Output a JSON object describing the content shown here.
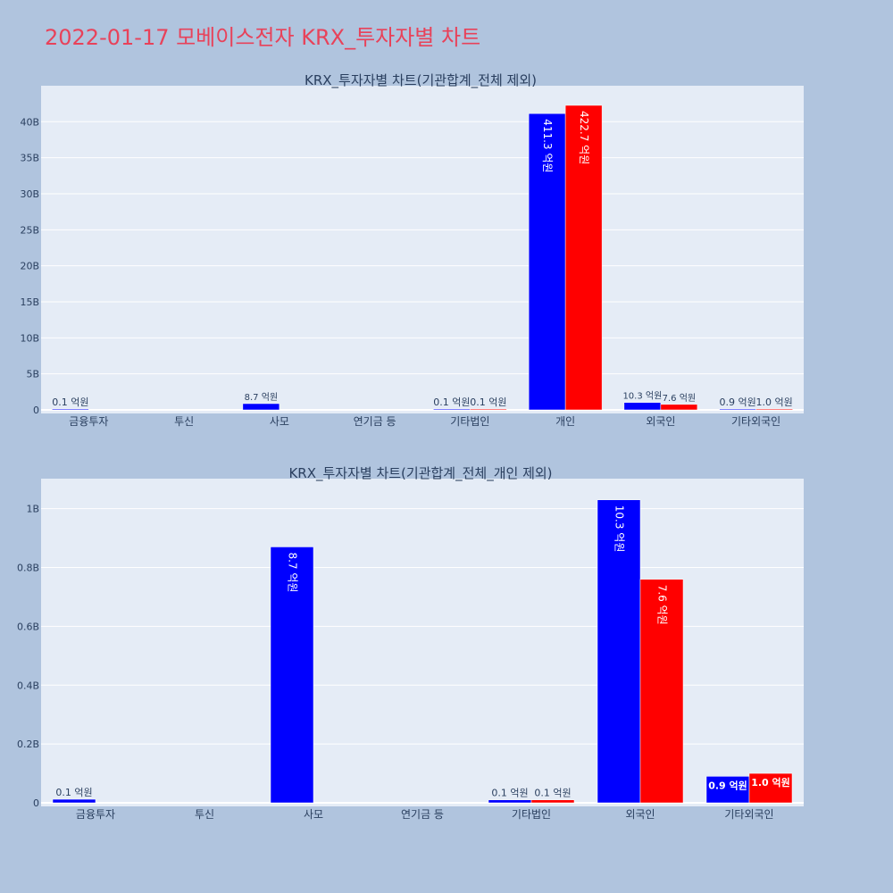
{
  "page": {
    "title": "2022-01-17 모베이스전자 KRX_투자자별 차트"
  },
  "colors": {
    "series1": "#0000ff",
    "series2": "#ff0000",
    "plot_bg": "#e5ecf6",
    "page_bg": "#b0c4de",
    "title": "#e8425a"
  },
  "chart_data": [
    {
      "type": "bar",
      "title": "KRX_투자자별 차트(기관합계_전체 제외)",
      "categories": [
        "금융투자",
        "투신",
        "사모",
        "연기금 등",
        "기타법인",
        "개인",
        "외국인",
        "기타외국인"
      ],
      "series": [
        {
          "color": "#0000ff",
          "values": [
            0.012,
            0,
            0.87,
            0,
            0.01,
            41.13,
            1.03,
            0.09
          ],
          "labels": [
            "0.1 억원",
            "",
            "8.7 억원",
            "",
            "0.1 억원",
            "411.3 억원",
            "10.3 억원",
            "0.9 억원"
          ]
        },
        {
          "color": "#ff0000",
          "values": [
            0,
            0,
            0,
            0,
            0.01,
            42.27,
            0.76,
            0.1
          ],
          "labels": [
            "",
            "",
            "",
            "",
            "0.1 억원",
            "422.7 억원",
            "7.6 억원",
            "1.0 억원"
          ]
        }
      ],
      "yticks": [
        0,
        5,
        10,
        15,
        20,
        25,
        30,
        35,
        40
      ],
      "yticklabels": [
        "0",
        "5B",
        "10B",
        "15B",
        "20B",
        "25B",
        "30B",
        "35B",
        "40B"
      ],
      "ylim": [
        0,
        44.5
      ],
      "grid": true
    },
    {
      "type": "bar",
      "title": "KRX_투자자별 차트(기관합계_전체_개인 제외)",
      "categories": [
        "금융투자",
        "투신",
        "사모",
        "연기금 등",
        "기타법인",
        "외국인",
        "기타외국인"
      ],
      "series": [
        {
          "color": "#0000ff",
          "values": [
            0.012,
            0,
            0.87,
            0,
            0.01,
            1.03,
            0.09
          ],
          "labels": [
            "0.1 억원",
            "",
            "8.7 억원",
            "",
            "0.1 억원",
            "10.3 억원",
            "0.9 억원"
          ]
        },
        {
          "color": "#ff0000",
          "values": [
            0,
            0,
            0,
            0,
            0.01,
            0.76,
            0.1
          ],
          "labels": [
            "",
            "",
            "",
            "",
            "0.1 억원",
            "7.6 억원",
            "1.0 억원"
          ]
        }
      ],
      "yticks": [
        0,
        0.2,
        0.4,
        0.6,
        0.8,
        1.0
      ],
      "yticklabels": [
        "0",
        "0.2B",
        "0.4B",
        "0.6B",
        "0.8B",
        "1B"
      ],
      "ylim": [
        0,
        1.09
      ],
      "grid": true
    }
  ]
}
